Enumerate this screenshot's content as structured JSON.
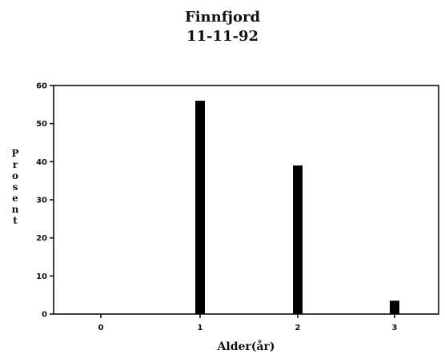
{
  "chart_data": {
    "type": "bar",
    "title": "Finnfjord",
    "subtitle": "11-11-92",
    "xlabel": "Alder(år)",
    "ylabel": "Prosent",
    "categories": [
      "0",
      "1",
      "2",
      "3"
    ],
    "values": [
      0,
      56,
      39,
      3.5
    ],
    "ylim": [
      0,
      60
    ],
    "yticks": [
      0,
      10,
      20,
      30,
      40,
      50,
      60
    ],
    "grid": false,
    "bar_color": "#000000"
  }
}
